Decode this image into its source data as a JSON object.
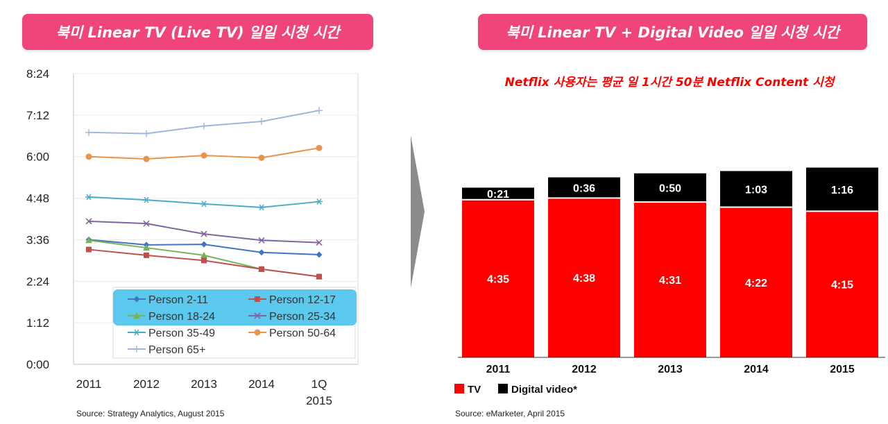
{
  "left_panel": {
    "title": "북미 Linear TV (Live TV) 일일 시청 시간",
    "source": "Source: Strategy Analytics, August 2015"
  },
  "right_panel": {
    "title": "북미 Linear TV + Digital Video 일일 시청 시간",
    "subtitle": "Netflix 사용자는 평균 일 1시간 50분 Netflix Content 시청",
    "source": "Source: eMarketer, April 2015"
  },
  "colors": {
    "banner": "#f0457a",
    "tv": "#ff0000",
    "digital": "#000000",
    "legend_highlight": "#5bc8ee",
    "arrow": "#8c8c8c"
  },
  "chart_data": [
    {
      "type": "line",
      "y_unit": "hours:minutes",
      "yticks": [
        "0:00",
        "1:12",
        "2:24",
        "3:36",
        "4:48",
        "6:00",
        "7:12",
        "8:24"
      ],
      "ylim_minutes": [
        0,
        504
      ],
      "categories": [
        "2011",
        "2012",
        "2013",
        "2014",
        "1Q 2015"
      ],
      "series": [
        {
          "name": "Person 2-11",
          "color": "#4472c4",
          "marker": "diamond",
          "values": [
            216,
            207,
            208,
            194,
            190
          ]
        },
        {
          "name": "Person 12-17",
          "color": "#c0504d",
          "marker": "square",
          "values": [
            199,
            189,
            180,
            165,
            152
          ]
        },
        {
          "name": "Person 18-24",
          "color": "#76b458",
          "marker": "triangle",
          "values": [
            215,
            202,
            189,
            165,
            152
          ]
        },
        {
          "name": "Person 25-34",
          "color": "#8064a2",
          "marker": "x",
          "values": [
            248,
            244,
            226,
            215,
            211
          ]
        },
        {
          "name": "Person 35-49",
          "color": "#4bacc6",
          "marker": "star",
          "values": [
            290,
            285,
            278,
            272,
            282
          ]
        },
        {
          "name": "Person 50-64",
          "color": "#e8954c",
          "marker": "circle",
          "values": [
            360,
            356,
            362,
            358,
            375
          ]
        },
        {
          "name": "Person 65+",
          "color": "#9eb6dc",
          "marker": "plus",
          "values": [
            402,
            400,
            413,
            421,
            440
          ]
        }
      ],
      "legend": {
        "highlighted": [
          "Person 2-11",
          "Person 12-17",
          "Person 18-24",
          "Person 25-34"
        ]
      }
    },
    {
      "type": "bar",
      "stacked": true,
      "categories": [
        "2011",
        "2012",
        "2013",
        "2014",
        "2015"
      ],
      "series": [
        {
          "name": "TV",
          "color": "#ff0000",
          "labels": [
            "4:35",
            "4:38",
            "4:31",
            "4:22",
            "4:15"
          ],
          "values_minutes": [
            275,
            278,
            271,
            262,
            255
          ]
        },
        {
          "name": "Digital video*",
          "color": "#000000",
          "labels": [
            "0:21",
            "0:36",
            "0:50",
            "1:03",
            "1:16"
          ],
          "values_minutes": [
            21,
            36,
            50,
            63,
            76
          ]
        }
      ]
    }
  ]
}
